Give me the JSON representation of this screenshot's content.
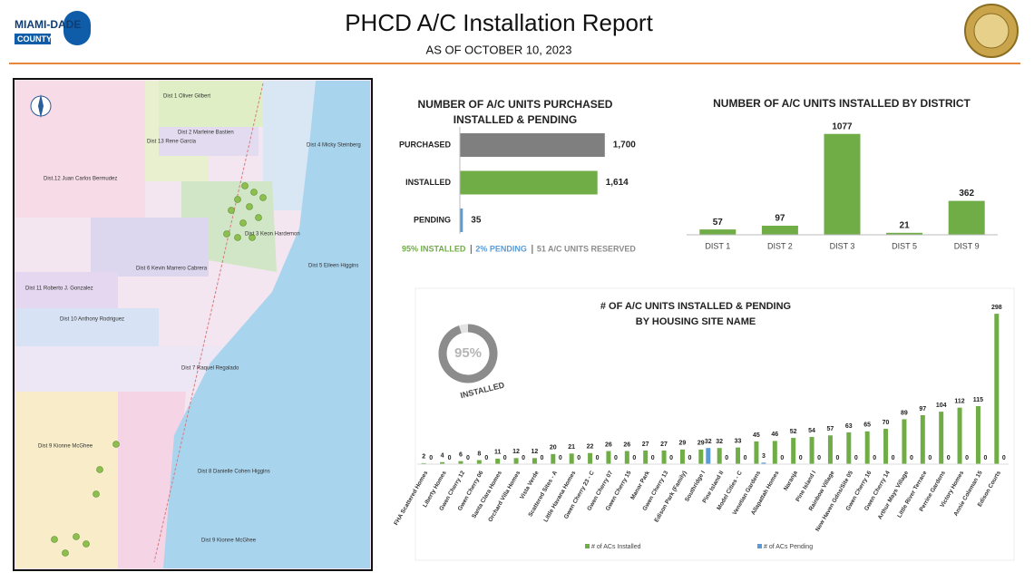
{
  "header": {
    "logo": [
      "MIAMI-DADE",
      "COUNTY"
    ],
    "title": "PHCD A/C Installation Report",
    "subtitle": "AS OF OCTOBER 10, 2023"
  },
  "map": {
    "labels": [
      "Dist 1 Oliver Gilbert",
      "Dist 2 Marleine Bastien",
      "Dist 13 Rene Garcia",
      "Dist 4 Micky Steinberg",
      "Dist.12 Juan Carlos Bermudez",
      "Dist 3 Keon Hardemon",
      "Dist 6 Kevin Marrero Cabrera",
      "Dist 5 Eileen Higgins",
      "Dist 11 Roberto J. Gonzalez",
      "Dist 10 Anthony Rodriguez",
      "Dist 7 Raquel Regalado",
      "Dist 9 Kionne McGhee",
      "Dist 8 Danielle Cohen Higgins",
      "Dist 9 Kionne McGhee"
    ]
  },
  "chart_data": [
    {
      "type": "barh",
      "title": [
        "NUMBER OF A/C UNITS PURCHASED",
        "INSTALLED & PENDING"
      ],
      "categories": [
        "PURCHASED",
        "INSTALLED",
        "PENDING"
      ],
      "values": [
        1700,
        1614,
        35
      ],
      "value_labels": [
        "1,700",
        "1,614",
        "35"
      ],
      "colors": [
        "#7f7f7f",
        "#70ad47",
        "#5b9bd5"
      ],
      "xlim": [
        0,
        2000
      ],
      "footnote": [
        {
          "text": "95% INSTALLED",
          "color": "#70ad47"
        },
        {
          "text": "2% PENDING",
          "color": "#5b9bd5"
        },
        {
          "text": "51 A/C UNITS RESERVED",
          "color": "#8c8c8c"
        }
      ]
    },
    {
      "type": "bar",
      "title": [
        "NUMBER OF A/C UNITS INSTALLED BY DISTRICT"
      ],
      "categories": [
        "DIST 1",
        "DIST 2",
        "DIST 3",
        "DIST 5",
        "DIST 9"
      ],
      "values": [
        57,
        97,
        1077,
        21,
        362
      ],
      "color": "#70ad47",
      "ylim": [
        0,
        1200
      ]
    },
    {
      "type": "grouped",
      "title": [
        "# OF A/C UNITS INSTALLED & PENDING",
        "BY HOUSING SITE NAME"
      ],
      "categories": [
        "FHA Scattered Homes",
        "Liberty Homes",
        "Gwen Cherry 12",
        "Gwen Cherry 06",
        "Santa Clara Homes",
        "Orchard Villa Homes",
        "Vista Verde",
        "Scattered Sites - A",
        "Little Havana Homes",
        "Gwen Cherry 23 - C",
        "Gwen Cherry 07",
        "Gwen Cherry 15",
        "Manor Park",
        "Gwen Cherry 13",
        "Edison Park (Family)",
        "Southridge I",
        "Pine Island II",
        "Model Cities - C",
        "Venetian Gardens",
        "Allapattah Homes",
        "Naranja",
        "Pine Island I",
        "Rainbow Village",
        "New Haven Gdns/Site 05",
        "Gwen Cherry 16",
        "Gwen Cherry 14",
        "Arthur Mays Village",
        "Little River Terrace",
        "Perrine Gardens",
        "Victory Homes",
        "Annie Coleman 15",
        "Edison Courts"
      ],
      "series": [
        {
          "name": "# of ACs Installed",
          "color": "#70ad47",
          "values": [
            2,
            4,
            6,
            8,
            11,
            12,
            12,
            20,
            21,
            22,
            26,
            26,
            27,
            27,
            29,
            29,
            32,
            33,
            45,
            46,
            52,
            54,
            57,
            63,
            65,
            70,
            89,
            97,
            104,
            112,
            115,
            298
          ]
        },
        {
          "name": "# of ACs Pending",
          "color": "#5b9bd5",
          "values": [
            0,
            0,
            0,
            0,
            0,
            0,
            0,
            0,
            0,
            0,
            0,
            0,
            0,
            0,
            0,
            32,
            0,
            0,
            3,
            0,
            0,
            0,
            0,
            0,
            0,
            0,
            0,
            0,
            0,
            0,
            0,
            0
          ]
        }
      ],
      "ylim": [
        0,
        300
      ],
      "donut": {
        "value": 95,
        "value_label": "95%",
        "label": "INSTALLED"
      }
    }
  ]
}
